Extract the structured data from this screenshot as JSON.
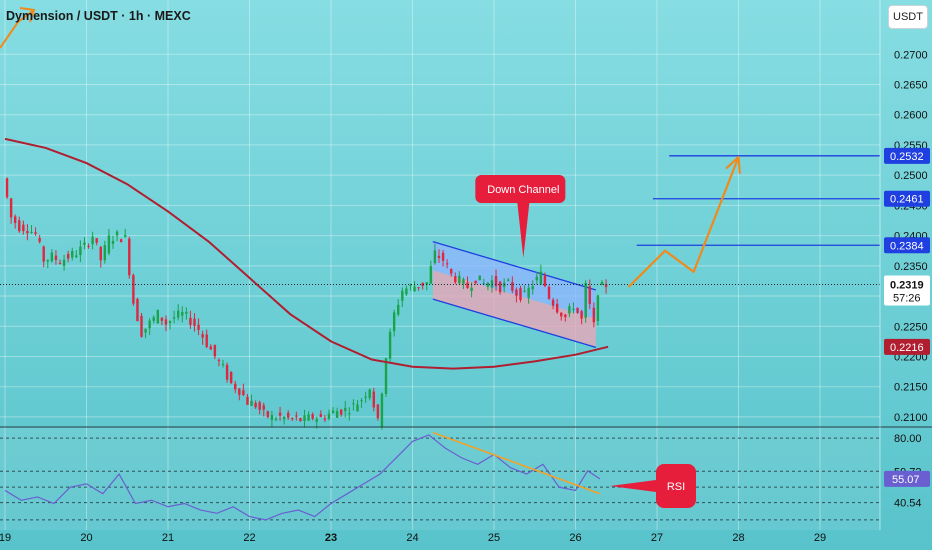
{
  "header": {
    "title": "Dymension / USDT · 1h · MEXC",
    "currency": "USDT"
  },
  "colors": {
    "bg_top": "#7fdbe0",
    "bg_bottom": "#5fc7cf",
    "up": "#1aa34a",
    "down": "#e0263f",
    "ma": "#b01e2f",
    "level": "#1f3fe0",
    "projection": "#f08a1c",
    "channel_upper_fill": "#8fb4ff",
    "channel_lower_fill": "#f2a3b5",
    "rsi_line": "#6a5fd0",
    "rsi_trend": "#f0a22a",
    "callout": "#e61e3c"
  },
  "chart_data": [
    {
      "type": "candlestick",
      "title": "Dymension / USDT · 1h · MEXC",
      "x_tick_labels": [
        "19",
        "20",
        "21",
        "22",
        "23",
        "24",
        "25",
        "26",
        "27",
        "28",
        "29"
      ],
      "y_tick_labels": [
        "0.2700",
        "0.2650",
        "0.2600",
        "0.2550",
        "0.2500",
        "0.2450",
        "0.2400",
        "0.2350",
        "0.2300",
        "0.2250",
        "0.2200",
        "0.2150",
        "0.2100"
      ],
      "ylim": [
        0.2085,
        0.276
      ],
      "current_price": {
        "label": "0.2319",
        "countdown": "57:26"
      },
      "price_path": [
        [
          19.0,
          0.2495
        ],
        [
          19.1,
          0.243
        ],
        [
          19.2,
          0.2415
        ],
        [
          19.3,
          0.2412
        ],
        [
          19.4,
          0.2402
        ],
        [
          19.5,
          0.236
        ],
        [
          19.6,
          0.2365
        ],
        [
          19.7,
          0.2358
        ],
        [
          19.8,
          0.2365
        ],
        [
          19.9,
          0.2372
        ],
        [
          20.0,
          0.2382
        ],
        [
          20.1,
          0.24
        ],
        [
          20.2,
          0.236
        ],
        [
          20.3,
          0.2395
        ],
        [
          20.4,
          0.24
        ],
        [
          20.5,
          0.2395
        ],
        [
          20.6,
          0.229
        ],
        [
          20.7,
          0.224
        ],
        [
          20.8,
          0.2255
        ],
        [
          20.9,
          0.227
        ],
        [
          21.0,
          0.2255
        ],
        [
          21.1,
          0.2265
        ],
        [
          21.2,
          0.227
        ],
        [
          21.3,
          0.226
        ],
        [
          21.4,
          0.2245
        ],
        [
          21.5,
          0.2222
        ],
        [
          21.6,
          0.22
        ],
        [
          21.7,
          0.218
        ],
        [
          21.8,
          0.2155
        ],
        [
          21.9,
          0.2145
        ],
        [
          22.0,
          0.2125
        ],
        [
          22.1,
          0.212
        ],
        [
          22.2,
          0.2104
        ],
        [
          22.3,
          0.2099
        ],
        [
          22.4,
          0.21
        ],
        [
          22.5,
          0.2097
        ],
        [
          22.6,
          0.2096
        ],
        [
          22.7,
          0.2095
        ],
        [
          22.8,
          0.21
        ],
        [
          22.9,
          0.2098
        ],
        [
          23.0,
          0.2105
        ],
        [
          23.1,
          0.211
        ],
        [
          23.2,
          0.2112
        ],
        [
          23.3,
          0.2118
        ],
        [
          23.4,
          0.213
        ],
        [
          23.5,
          0.215
        ],
        [
          23.6,
          0.209
        ],
        [
          23.7,
          0.22
        ],
        [
          23.8,
          0.227
        ],
        [
          23.9,
          0.231
        ],
        [
          24.0,
          0.2315
        ],
        [
          24.1,
          0.2318
        ],
        [
          24.2,
          0.2322
        ],
        [
          24.3,
          0.237
        ],
        [
          24.4,
          0.236
        ],
        [
          24.5,
          0.2335
        ],
        [
          24.6,
          0.2325
        ],
        [
          24.7,
          0.2315
        ],
        [
          24.8,
          0.233
        ],
        [
          24.9,
          0.232
        ],
        [
          25.0,
          0.2325
        ],
        [
          25.1,
          0.2315
        ],
        [
          25.2,
          0.232
        ],
        [
          25.3,
          0.2305
        ],
        [
          25.4,
          0.23
        ],
        [
          25.5,
          0.232
        ],
        [
          25.6,
          0.2335
        ],
        [
          25.7,
          0.23
        ],
        [
          25.8,
          0.228
        ],
        [
          25.9,
          0.2265
        ],
        [
          26.0,
          0.2285
        ],
        [
          26.1,
          0.226
        ],
        [
          26.15,
          0.2315
        ],
        [
          26.25,
          0.225
        ],
        [
          26.3,
          0.231
        ],
        [
          26.4,
          0.2319
        ]
      ],
      "moving_average": [
        [
          19.0,
          0.256
        ],
        [
          19.5,
          0.2545
        ],
        [
          20.0,
          0.252
        ],
        [
          20.5,
          0.2485
        ],
        [
          21.0,
          0.244
        ],
        [
          21.5,
          0.239
        ],
        [
          22.0,
          0.233
        ],
        [
          22.5,
          0.227
        ],
        [
          23.0,
          0.2225
        ],
        [
          23.5,
          0.2195
        ],
        [
          24.0,
          0.2183
        ],
        [
          24.5,
          0.218
        ],
        [
          25.0,
          0.2183
        ],
        [
          25.5,
          0.2192
        ],
        [
          26.0,
          0.2203
        ],
        [
          26.4,
          0.2216
        ]
      ],
      "moving_average_label": "0.2216",
      "levels": [
        {
          "price": 0.2532,
          "label": "0.2532",
          "x_start": 27.15
        },
        {
          "price": 0.2461,
          "label": "0.2461",
          "x_start": 26.95
        },
        {
          "price": 0.2384,
          "label": "0.2384",
          "x_start": 26.75
        }
      ],
      "channel": {
        "upper": [
          [
            24.25,
            0.239
          ],
          [
            26.25,
            0.231
          ]
        ],
        "lower": [
          [
            24.25,
            0.2295
          ],
          [
            26.25,
            0.2215
          ]
        ],
        "label": "Down Channel"
      },
      "projection": [
        [
          26.65,
          0.2315
        ],
        [
          27.1,
          0.2375
        ],
        [
          27.45,
          0.234
        ],
        [
          28.0,
          0.253
        ]
      ]
    },
    {
      "type": "line",
      "name": "RSI",
      "y_tick_labels": [
        "80.00",
        "40.54"
      ],
      "value_labels": [
        "59.72",
        "55.07"
      ],
      "ylim": [
        25,
        85
      ],
      "levels": [
        80.0,
        59.72,
        50.0,
        40.54,
        30.0
      ],
      "trendline": [
        [
          24.25,
          83.5
        ],
        [
          26.3,
          46.0
        ]
      ],
      "values": [
        [
          19.0,
          48
        ],
        [
          19.2,
          42
        ],
        [
          19.4,
          44
        ],
        [
          19.6,
          40
        ],
        [
          19.8,
          50
        ],
        [
          20.0,
          52
        ],
        [
          20.2,
          46
        ],
        [
          20.4,
          58
        ],
        [
          20.6,
          40
        ],
        [
          20.8,
          42
        ],
        [
          21.0,
          38
        ],
        [
          21.2,
          40
        ],
        [
          21.4,
          36
        ],
        [
          21.6,
          34
        ],
        [
          21.8,
          38
        ],
        [
          22.0,
          32
        ],
        [
          22.2,
          30
        ],
        [
          22.4,
          34
        ],
        [
          22.6,
          36
        ],
        [
          22.8,
          32
        ],
        [
          23.0,
          40
        ],
        [
          23.2,
          46
        ],
        [
          23.4,
          52
        ],
        [
          23.6,
          58
        ],
        [
          23.8,
          68
        ],
        [
          24.0,
          78
        ],
        [
          24.2,
          82
        ],
        [
          24.4,
          74
        ],
        [
          24.6,
          68
        ],
        [
          24.8,
          64
        ],
        [
          25.0,
          70
        ],
        [
          25.2,
          62
        ],
        [
          25.4,
          58
        ],
        [
          25.6,
          64
        ],
        [
          25.8,
          50
        ],
        [
          26.0,
          48
        ],
        [
          26.15,
          60
        ],
        [
          26.3,
          55.07
        ]
      ],
      "label": "RSI"
    }
  ]
}
